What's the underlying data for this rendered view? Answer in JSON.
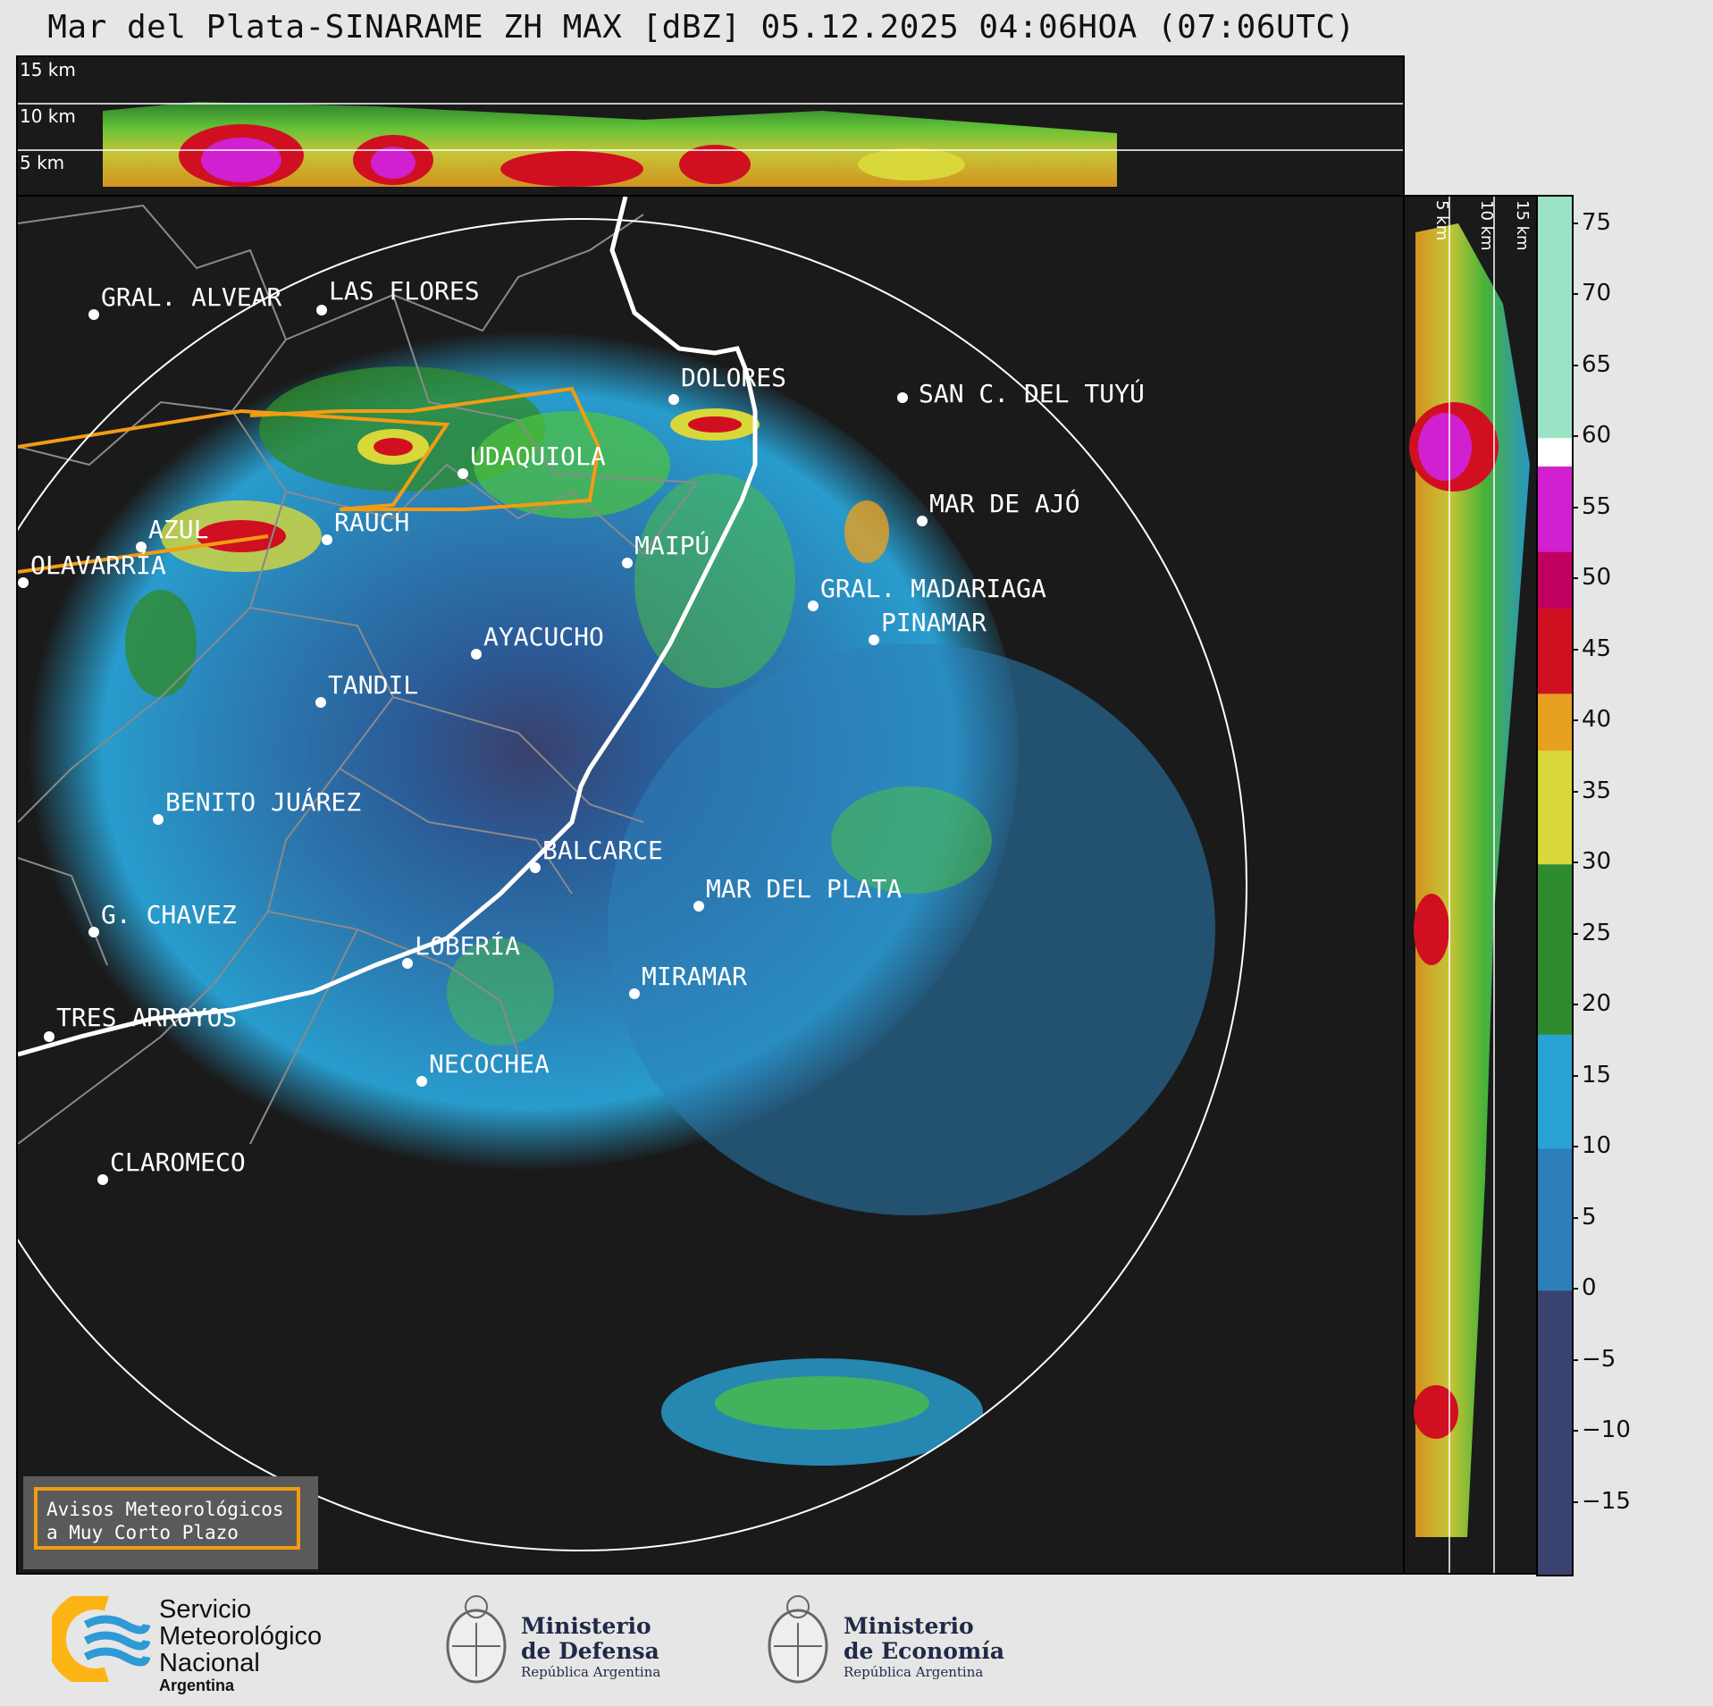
{
  "title": "Mar del Plata-SINARAME ZH MAX [dBZ] 05.12.2025 04:06HOA (07:06UTC)",
  "cross_section_labels": [
    "15 km",
    "10 km",
    "5 km"
  ],
  "colorbar": {
    "ticks": [
      "75",
      "70",
      "65",
      "60",
      "55",
      "50",
      "45",
      "40",
      "35",
      "30",
      "25",
      "20",
      "15",
      "10",
      "5",
      "0",
      "−5",
      "−10",
      "−15"
    ],
    "range": [
      -20,
      77
    ],
    "bands": [
      {
        "from": -20,
        "to": 0,
        "color": "#3a4270"
      },
      {
        "from": 0,
        "to": 10,
        "color": "#2c7fb8"
      },
      {
        "from": 10,
        "to": 18,
        "color": "#29a3d6"
      },
      {
        "from": 18,
        "to": 30,
        "color": "#2e8b2e"
      },
      {
        "from": 30,
        "to": 38,
        "color": "#d8d83a"
      },
      {
        "from": 38,
        "to": 42,
        "color": "#e8a020"
      },
      {
        "from": 42,
        "to": 48,
        "color": "#d01020"
      },
      {
        "from": 48,
        "to": 52,
        "color": "#c00060"
      },
      {
        "from": 52,
        "to": 58,
        "color": "#d020d0"
      },
      {
        "from": 58,
        "to": 60,
        "color": "#ffffff"
      },
      {
        "from": 60,
        "to": 77,
        "color": "#9be3c4"
      }
    ]
  },
  "cities": [
    {
      "name": "GRAL. ALVEAR"
    },
    {
      "name": "LAS FLORES"
    },
    {
      "name": "DOLORES"
    },
    {
      "name": "SAN C. DEL TUYÚ"
    },
    {
      "name": "UDAQUIOLA"
    },
    {
      "name": "MAR DE AJÓ"
    },
    {
      "name": "AZUL"
    },
    {
      "name": "RAUCH"
    },
    {
      "name": "OLAVARRÍA"
    },
    {
      "name": "MAIPÚ"
    },
    {
      "name": "GRAL. MADARIAGA"
    },
    {
      "name": "PINAMAR"
    },
    {
      "name": "AYACUCHO"
    },
    {
      "name": "TANDIL"
    },
    {
      "name": "BENITO JUÁREZ"
    },
    {
      "name": "BALCARCE"
    },
    {
      "name": "MAR DEL PLATA"
    },
    {
      "name": "G. CHAVEZ"
    },
    {
      "name": "LOBERÍA"
    },
    {
      "name": "MIRAMAR"
    },
    {
      "name": "TRES ARROYOS"
    },
    {
      "name": "NECOCHEA"
    },
    {
      "name": "CLAROMECO"
    }
  ],
  "notice": {
    "line1": "Avisos Meteorológicos",
    "line2": "a Muy Corto Plazo"
  },
  "logos": {
    "smn": {
      "line1": "Servicio",
      "line2": "Meteorológico",
      "line3": "Nacional",
      "line4": "Argentina",
      "colors": [
        "#fdb515",
        "#2e9ad6"
      ]
    },
    "defensa": {
      "line1": "Ministerio",
      "line2": "de Defensa",
      "line3": "República Argentina"
    },
    "economia": {
      "line1": "Ministerio",
      "line2": "de Economía",
      "line3": "República Argentina"
    }
  }
}
